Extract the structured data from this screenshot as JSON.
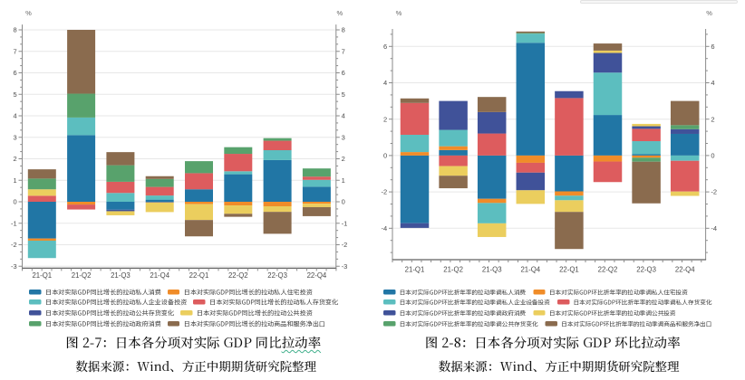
{
  "page": {
    "background": "#ffffff"
  },
  "chart_data": [
    {
      "type": "bar",
      "stacked": true,
      "title": "图 2-7：日本各分项对实际 GDP 同比拉动率",
      "title_squiggle_text": "拉动率",
      "source": "数据来源：Wind、方正中期期货研究院整理",
      "unit_label": "%",
      "grid": true,
      "legend_position": "bottom",
      "categories": [
        "21-Q1",
        "21-Q2",
        "21-Q3",
        "21-Q4",
        "22-Q1",
        "22-Q2",
        "22-Q3",
        "22-Q4"
      ],
      "ylim": [
        -3.09,
        8.25
      ],
      "y_major_ticks": [
        8,
        7,
        6,
        5,
        4,
        3,
        2,
        1,
        0,
        -1,
        -2,
        -3
      ],
      "series": [
        {
          "name": "日本对实际GDP同比增长的拉动私人消费",
          "color": "#2176A5",
          "values": [
            -1.71,
            3.1,
            -0.37,
            0.1,
            0.58,
            1.28,
            1.94,
            0.7
          ]
        },
        {
          "name": "日本对实际GDP同比增长的拉动私人住宅投资",
          "color": "#F08C29",
          "values": [
            -0.1,
            -0.13,
            0,
            0,
            -0.11,
            -0.17,
            -0.21,
            -0.09
          ]
        },
        {
          "name": "日本对实际GDP同比增长的拉动私人企业设备投资",
          "color": "#5CBEBF",
          "values": [
            -0.81,
            0.82,
            0.41,
            0.19,
            0,
            0.14,
            0.46,
            0.32
          ]
        },
        {
          "name": "日本对实际GDP同比增长的拉动私人存货变化",
          "color": "#DD5C5E",
          "values": [
            0.28,
            -0.23,
            0.52,
            0.4,
            0.75,
            0.81,
            0.44,
            0.15
          ]
        },
        {
          "name": "日本对实际GDP同比增长的拉动公共存货变化",
          "color": "#405299",
          "values": [
            0,
            0,
            -0.07,
            -0.03,
            0,
            0,
            0,
            0
          ]
        },
        {
          "name": "日本对实际GDP同比增长的拉动公共投资",
          "color": "#EBCE5E",
          "values": [
            0.3,
            0,
            -0.19,
            -0.45,
            -0.74,
            -0.39,
            -0.26,
            -0.16
          ]
        },
        {
          "name": "日本对实际GDP同比增长的拉动政府消费",
          "color": "#58A26C",
          "values": [
            0.5,
            1.11,
            0.77,
            0.37,
            0.56,
            0.31,
            0.12,
            0.38
          ]
        },
        {
          "name": "日本对实际GDP同比增长的拉动商品和服务净出口",
          "color": "#8A6B4E",
          "values": [
            0.43,
            2.97,
            0.61,
            0.13,
            -0.76,
            -0.14,
            -1.02,
            -0.42
          ]
        }
      ]
    },
    {
      "type": "bar",
      "stacked": true,
      "title": "图 2-8：日本各分项对实际 GDP 环比拉动率",
      "title_squiggle_text": "",
      "source": "数据来源：Wind、方正中期期货研究院整理",
      "unit_label": "%",
      "grid": true,
      "legend_position": "bottom",
      "categories": [
        "21-Q1",
        "21-Q2",
        "21-Q3",
        "21-Q4",
        "22-Q1",
        "22-Q2",
        "22-Q3",
        "22-Q4"
      ],
      "ylim": [
        -5.73,
        6.96
      ],
      "y_major_ticks": [
        6,
        4,
        2,
        0,
        -2,
        -4
      ],
      "series": [
        {
          "name": "日本对实际GDP环比折年率的拉动季调私人消费",
          "color": "#2176A5",
          "values": [
            -3.72,
            0.3,
            -2.38,
            6.2,
            -1.97,
            2.23,
            0.07,
            1.19
          ]
        },
        {
          "name": "日本对实际GDP环比折年率的拉动季调私人住宅投资",
          "color": "#F08C29",
          "values": [
            0.19,
            0.21,
            -0.23,
            -0.4,
            -0.24,
            -0.33,
            -0.12,
            0
          ]
        },
        {
          "name": "日本对实际GDP环比折年率的拉动季调私人企业设备投资",
          "color": "#5CBEBF",
          "values": [
            0.95,
            0.9,
            -1.12,
            0.5,
            -0.25,
            2.33,
            0.72,
            -0.29
          ]
        },
        {
          "name": "日本对实际GDP环比折年率的拉动季调私人存货变化",
          "color": "#DD5C5E",
          "values": [
            1.75,
            -0.58,
            1.21,
            -0.54,
            3.16,
            -1.13,
            0.68,
            -1.69
          ]
        },
        {
          "name": "日本对实际GDP环比折年率的拉动季调政府消费",
          "color": "#405299",
          "values": [
            -0.26,
            1.59,
            1.18,
            -0.97,
            0.38,
            1.08,
            0.14,
            0.26
          ]
        },
        {
          "name": "日本对实际GDP环比折年率的拉动季调公共投资",
          "color": "#EBCE5E",
          "values": [
            0,
            -0.53,
            -0.75,
            -0.75,
            -0.64,
            0.13,
            0.13,
            -0.24
          ]
        },
        {
          "name": "日本对实际GDP环比折年率的拉动季调公共存货变化",
          "color": "#58A26C",
          "values": [
            0,
            0,
            0,
            0.04,
            0,
            0,
            -0.22,
            0.22
          ]
        },
        {
          "name": "日本对实际GDP环比折年率的拉动季调商品和服务净出口",
          "color": "#8A6B4E",
          "values": [
            0.25,
            -0.69,
            0.83,
            0.08,
            -2.04,
            0.39,
            -2.29,
            1.33
          ]
        }
      ]
    }
  ]
}
